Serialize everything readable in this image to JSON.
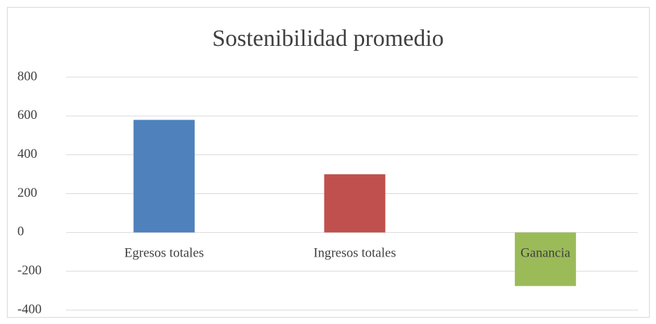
{
  "chart_data": {
    "type": "bar",
    "title": "Sostenibilidad promedio",
    "categories": [
      "Egresos totales",
      "Ingresos totales",
      "Ganancia"
    ],
    "values": [
      580,
      300,
      -276
    ],
    "colors": [
      "#4f81bd",
      "#c0504d",
      "#9bbb59"
    ],
    "ylim": [
      -400,
      800
    ],
    "yticks": [
      -400,
      -200,
      0,
      200,
      400,
      600,
      800
    ],
    "grid": true
  }
}
